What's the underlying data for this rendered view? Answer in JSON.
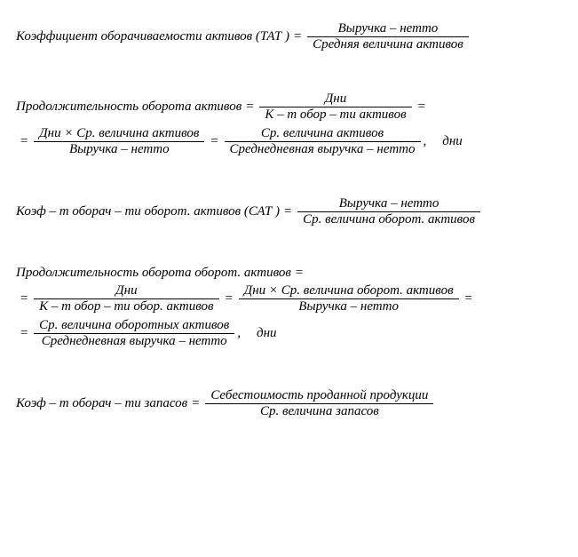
{
  "eq_sign": "=",
  "comma": ",",
  "times": "×",
  "f1": {
    "lhs": "Коэффициент оборачиваемости активов (ТАТ )",
    "num": "Выручка – нетто",
    "den": "Средняя величина активов"
  },
  "f2": {
    "lhs": "Продолжительность оборота активов",
    "r1_num": "Дни",
    "r1_den": "К – т обор – ти активов",
    "r2a_num": "Дни × Ср. величина активов",
    "r2a_den": "Выручка – нетто",
    "r2b_num": "Ср. величина активов",
    "r2b_den": "Среднедневная выручка – нетто",
    "unit": "дни"
  },
  "f3": {
    "lhs": "Коэф – т оборач – ти оборот. активов (САТ )",
    "num": "Выручка – нетто",
    "den": "Ср. величина оборот. активов"
  },
  "f4": {
    "lhs": "Продолжительность оборота оборот. активов",
    "r2a_num": "Дни",
    "r2a_den": "К – т обор – ти обор. активов",
    "r2b_num": "Дни × Ср. величина оборот. активов",
    "r2b_den": "Выручка – нетто",
    "r3_num": "Ср. величина оборотных активов",
    "r3_den": "Среднедневная выручка – нетто",
    "unit": "дни"
  },
  "f5": {
    "lhs": "Коэф – т оборач – ти запасов",
    "num": "Себестоимость проданной продукции",
    "den": "Ср. величина  запасов"
  }
}
